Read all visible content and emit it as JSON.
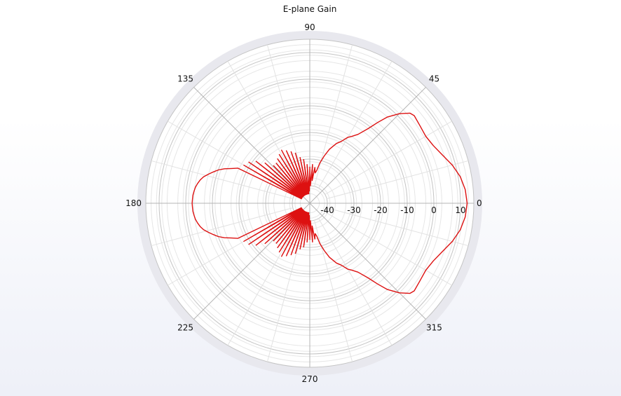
{
  "chart_data": {
    "type": "polar-line",
    "title": "E-plane Gain",
    "angular_ticks": [
      "0",
      "45",
      "90",
      "135",
      "180",
      "225",
      "270",
      "315"
    ],
    "angular_tick_values": [
      0,
      45,
      90,
      135,
      180,
      225,
      270,
      315
    ],
    "radial_ticks": [
      "-40",
      "-30",
      "-20",
      "-10",
      "0",
      "10"
    ],
    "radial_tick_values": [
      -40,
      -30,
      -20,
      -10,
      0,
      10
    ],
    "radial_range": [
      -45,
      15
    ],
    "grid": true,
    "series_color": "#dd1111",
    "series": [
      {
        "theta": [
          0,
          5,
          10,
          15,
          20,
          25,
          30,
          35,
          40,
          42,
          45,
          48,
          50,
          52,
          55,
          58,
          60,
          63,
          66,
          70,
          73,
          76,
          78,
          80,
          82,
          84,
          86,
          88,
          90,
          92,
          94,
          96,
          98,
          100,
          102,
          104,
          106,
          108,
          110,
          112,
          114,
          116,
          118,
          120,
          122,
          124,
          126,
          128,
          130,
          132,
          134,
          136,
          138,
          140,
          142,
          144,
          146,
          148,
          150,
          152,
          154,
          156,
          158,
          160,
          162,
          164,
          166,
          168,
          170,
          172,
          174,
          176,
          178,
          180
        ],
        "gain": [
          12.5,
          12.0,
          10.8,
          8.8,
          6.4,
          4.6,
          3.7,
          4.0,
          4.6,
          4.0,
          1.0,
          -3.0,
          -7.0,
          -11.0,
          -15.0,
          -17.0,
          -18.0,
          -20.5,
          -22.0,
          -25.0,
          -28.0,
          -31.0,
          -34.0,
          -35.0,
          -33.0,
          -38.0,
          -32.0,
          -40.0,
          -33.0,
          -42.0,
          -32.0,
          -43.0,
          -30.0,
          -43.0,
          -29.0,
          -43.0,
          -27.0,
          -43.0,
          -26.0,
          -43.0,
          -25.0,
          -43.0,
          -24.0,
          -43.0,
          -25.0,
          -43.0,
          -26.0,
          -43.0,
          -27.0,
          -43.0,
          -27.0,
          -43.0,
          -24.0,
          -43.0,
          -21.0,
          -43.0,
          -19.0,
          -43.0,
          -18.0,
          -43.0,
          -16.5,
          -14.5,
          -12.0,
          -10.0,
          -8.5,
          -7.0,
          -5.5,
          -4.5,
          -3.8,
          -3.2,
          -2.9,
          -2.6,
          -2.5,
          -2.4
        ]
      }
    ]
  }
}
